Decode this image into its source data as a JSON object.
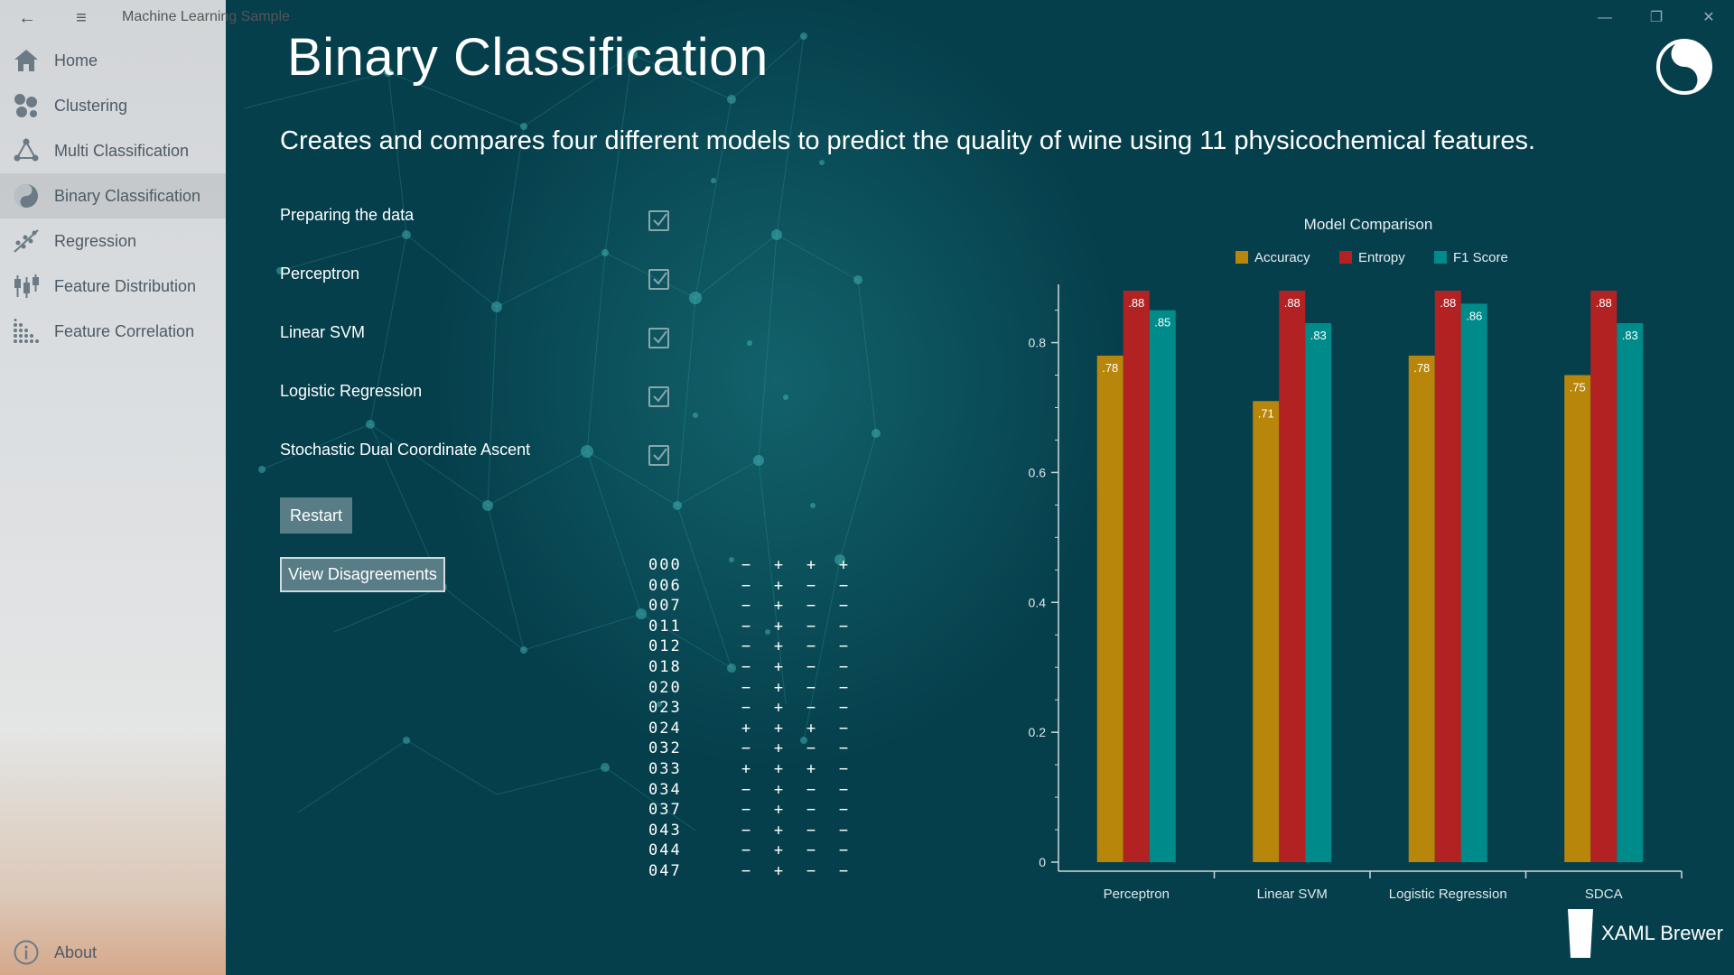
{
  "window": {
    "app_title": "Machine Learning Sample"
  },
  "nav": {
    "items": [
      {
        "label": "Home",
        "icon": "home-icon"
      },
      {
        "label": "Clustering",
        "icon": "clustering-icon"
      },
      {
        "label": "Multi Classification",
        "icon": "multi-classification-icon"
      },
      {
        "label": "Binary Classification",
        "icon": "binary-classification-icon",
        "active": true
      },
      {
        "label": "Regression",
        "icon": "regression-icon"
      },
      {
        "label": "Feature Distribution",
        "icon": "feature-distribution-icon"
      },
      {
        "label": "Feature Correlation",
        "icon": "feature-correlation-icon"
      }
    ],
    "about_label": "About"
  },
  "page": {
    "title": "Binary Classification",
    "subtitle": "Creates and compares four different models to predict the quality of wine using 11 physicochemical features."
  },
  "steps": [
    {
      "label": "Preparing the data",
      "checked": true
    },
    {
      "label": "Perceptron",
      "checked": true
    },
    {
      "label": "Linear SVM",
      "checked": true
    },
    {
      "label": "Logistic Regression",
      "checked": true
    },
    {
      "label": "Stochastic Dual Coordinate Ascent",
      "checked": true
    }
  ],
  "buttons": {
    "restart": "Restart",
    "view_disagreements": "View Disagreements"
  },
  "disagreements": [
    {
      "id": "000",
      "signs": [
        "−",
        "+",
        "+",
        "+"
      ]
    },
    {
      "id": "006",
      "signs": [
        "−",
        "+",
        "−",
        "−"
      ]
    },
    {
      "id": "007",
      "signs": [
        "−",
        "+",
        "−",
        "−"
      ]
    },
    {
      "id": "011",
      "signs": [
        "−",
        "+",
        "−",
        "−"
      ]
    },
    {
      "id": "012",
      "signs": [
        "−",
        "+",
        "−",
        "−"
      ]
    },
    {
      "id": "018",
      "signs": [
        "−",
        "+",
        "−",
        "−"
      ]
    },
    {
      "id": "020",
      "signs": [
        "−",
        "+",
        "−",
        "−"
      ]
    },
    {
      "id": "023",
      "signs": [
        "−",
        "+",
        "−",
        "−"
      ]
    },
    {
      "id": "024",
      "signs": [
        "+",
        "+",
        "+",
        "−"
      ]
    },
    {
      "id": "032",
      "signs": [
        "−",
        "+",
        "−",
        "−"
      ]
    },
    {
      "id": "033",
      "signs": [
        "+",
        "+",
        "+",
        "−"
      ]
    },
    {
      "id": "034",
      "signs": [
        "−",
        "+",
        "−",
        "−"
      ]
    },
    {
      "id": "037",
      "signs": [
        "−",
        "+",
        "−",
        "−"
      ]
    },
    {
      "id": "043",
      "signs": [
        "−",
        "+",
        "−",
        "−"
      ]
    },
    {
      "id": "044",
      "signs": [
        "−",
        "+",
        "−",
        "−"
      ]
    },
    {
      "id": "047",
      "signs": [
        "−",
        "+",
        "−",
        "−"
      ]
    }
  ],
  "chart_data": {
    "type": "bar",
    "title": "Model Comparison",
    "categories": [
      "Perceptron",
      "Linear SVM",
      "Logistic Regression",
      "SDCA"
    ],
    "series": [
      {
        "name": "Accuracy",
        "color": "#b8860b",
        "values": [
          0.78,
          0.71,
          0.78,
          0.75
        ],
        "labels": [
          ".78",
          ".71",
          ".78",
          ".75"
        ]
      },
      {
        "name": "Entropy",
        "color": "#b22222",
        "values": [
          0.88,
          0.88,
          0.88,
          0.88
        ],
        "labels": [
          ".88",
          ".88",
          ".88",
          ".88"
        ]
      },
      {
        "name": "F1 Score",
        "color": "#008b8b",
        "values": [
          0.85,
          0.83,
          0.86,
          0.83
        ],
        "labels": [
          ".85",
          ".83",
          ".86",
          ".83"
        ]
      }
    ],
    "yticks": [
      "0",
      "0.2",
      "0.4",
      "0.6",
      "0.8"
    ],
    "ylim": [
      0,
      0.88
    ],
    "legend": "top",
    "grid": false
  },
  "brand": {
    "text": "XAML Brewer"
  },
  "colors": {
    "background": "#053f4c",
    "sidebar": "#d8dbdd",
    "button": "#587d87"
  }
}
